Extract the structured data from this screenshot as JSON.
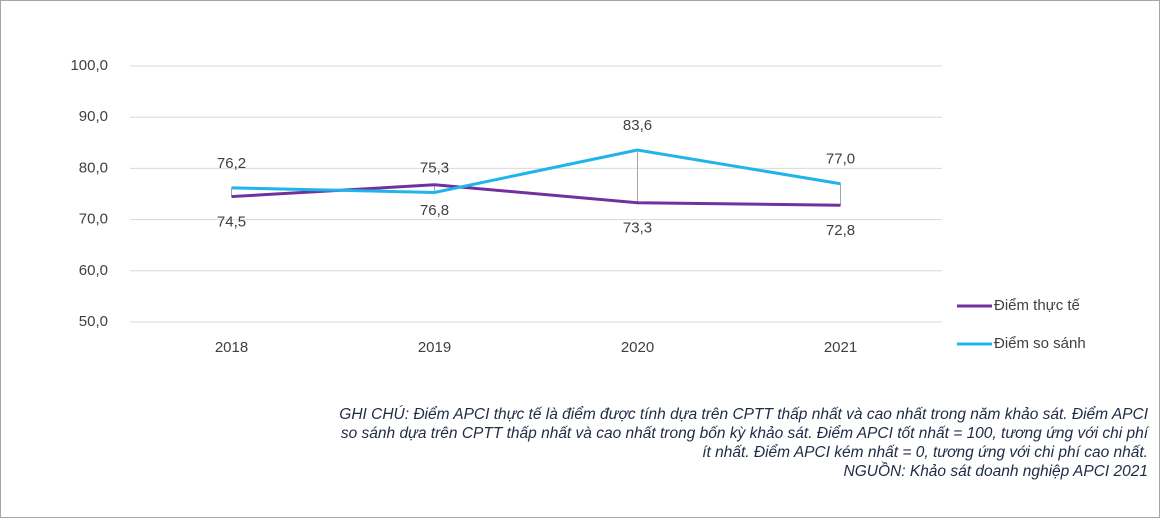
{
  "chart_data": {
    "type": "line",
    "categories": [
      "2018",
      "2019",
      "2020",
      "2021"
    ],
    "series": [
      {
        "name": "Điểm thực tế",
        "color": "#7030a0",
        "values": [
          74.5,
          76.8,
          73.3,
          72.8
        ],
        "value_labels": [
          "74,5",
          "76,8",
          "73,3",
          "72,8"
        ]
      },
      {
        "name": "Điểm so sánh",
        "color": "#1fb4ea",
        "values": [
          76.2,
          75.3,
          83.6,
          77.0
        ],
        "value_labels": [
          "76,2",
          "75,3",
          "83,6",
          "77,0"
        ]
      }
    ],
    "ylim": [
      50,
      100
    ],
    "yticks": [
      {
        "value": 50,
        "label": "50,0"
      },
      {
        "value": 60,
        "label": "60,0"
      },
      {
        "value": 70,
        "label": "70,0"
      },
      {
        "value": 80,
        "label": "80,0"
      },
      {
        "value": 90,
        "label": "90,0"
      },
      {
        "value": 100,
        "label": "100,0"
      }
    ],
    "grid": true,
    "legend": "right",
    "note": [
      "GHI CHÚ: Điểm APCI thực tế là điểm được tính dựa trên CPTT thấp nhất và cao nhất trong năm khảo sát. Điểm APCI",
      "so sánh dựa trên CPTT thấp nhất và cao nhất trong bốn kỳ khảo sát. Điểm APCI tốt nhất = 100, tương ứng với chi phí",
      "ít nhất. Điểm APCI kém nhất = 0, tương ứng với chi phí cao nhất."
    ],
    "source": "NGUỒN: Khảo sát doanh nghiệp APCI 2021"
  }
}
